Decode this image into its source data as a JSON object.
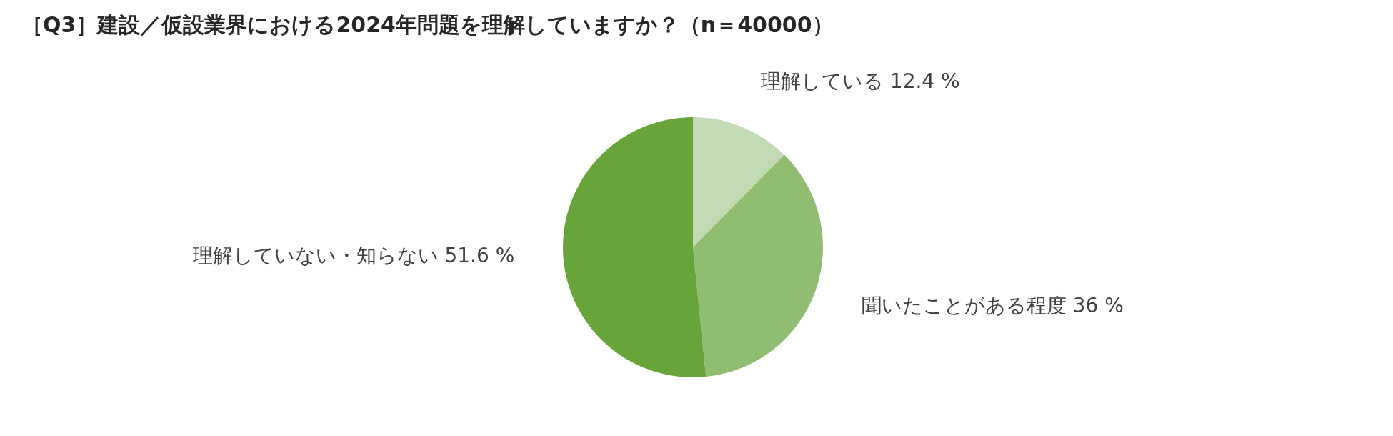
{
  "chart_data": {
    "type": "pie",
    "title": "［Q3］建設／仮設業界における2024年問題を理解していますか？（n＝40000）",
    "categories": [
      "理解している",
      "聞いたことがある程度",
      "理解していない・知らない"
    ],
    "values": [
      12.4,
      36,
      51.6
    ],
    "value_labels": [
      "12.4 %",
      "36 %",
      "51.6 %"
    ],
    "colors": [
      "#c3dbb5",
      "#8fbd72",
      "#67a53b"
    ]
  }
}
